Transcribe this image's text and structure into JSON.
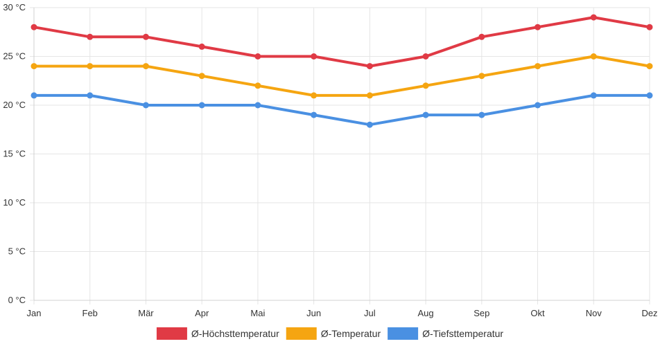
{
  "chart_data": {
    "type": "line",
    "categories": [
      "Jan",
      "Feb",
      "Mär",
      "Apr",
      "Mai",
      "Jun",
      "Jul",
      "Aug",
      "Sep",
      "Okt",
      "Nov",
      "Dez"
    ],
    "ylim": [
      0,
      30
    ],
    "yticks": [
      0,
      5,
      10,
      15,
      20,
      25,
      30
    ],
    "y_unit": " °C",
    "grid": true,
    "legend_position": "bottom",
    "series": [
      {
        "name": "Ø-Höchsttemperatur",
        "color": "#e03a45",
        "values": [
          28,
          27,
          27,
          26,
          25,
          25,
          24,
          25,
          27,
          28,
          29,
          28
        ]
      },
      {
        "name": "Ø-Temperatur",
        "color": "#f5a511",
        "values": [
          24,
          24,
          24,
          23,
          22,
          21,
          21,
          22,
          23,
          24,
          25,
          24
        ]
      },
      {
        "name": "Ø-Tiefsttemperatur",
        "color": "#4a90e2",
        "values": [
          21,
          21,
          20,
          20,
          20,
          19,
          18,
          19,
          19,
          20,
          21,
          21
        ]
      }
    ]
  }
}
